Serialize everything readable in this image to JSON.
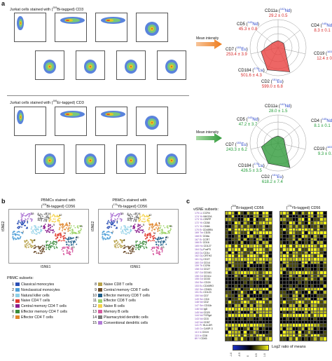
{
  "panel_a": {
    "letter": "a",
    "top_title_pre": "Jurkat cells stained with (",
    "top_title_iso": "209",
    "top_title_post": "Bi-tagged) CD3",
    "bottom_title_pre": "Jurkat cells stained with (",
    "bottom_title_iso": "166",
    "bottom_title_post": "Er-tagged) CD3",
    "mean_intensity_label": "Mean intensity",
    "radar_top": [
      {
        "marker": "CD11a",
        "mass": "142",
        "el": "Nd",
        "value": "29.2 ± 0.5"
      },
      {
        "marker": "CD4",
        "mass": "145",
        "el": "Nd",
        "value": "8.3 ± 0.1"
      },
      {
        "marker": "CD19",
        "mass": "163",
        "el": "Dy",
        "value": "12.4 ± 0.2"
      },
      {
        "marker": "CD2",
        "mass": "151",
        "el": "Eu",
        "value": "599.0 ± 6.8"
      },
      {
        "marker": "CD184",
        "mass": "175",
        "el": "Lu",
        "value": "501.6 ± 4.3"
      },
      {
        "marker": "CD7",
        "mass": "153",
        "el": "Eu",
        "value": "253.4 ± 3.9"
      },
      {
        "marker": "CD5",
        "mass": "143",
        "el": "Nd",
        "value": "45.3 ± 0.8"
      }
    ],
    "radar_bottom": [
      {
        "marker": "CD11a",
        "mass": "142",
        "el": "Nd",
        "value": "28.0 ± 1.5"
      },
      {
        "marker": "CD4",
        "mass": "145",
        "el": "Nd",
        "value": "8.1 ± 0.1"
      },
      {
        "marker": "CD19",
        "mass": "163",
        "el": "Dy",
        "value": "9.3 ± 0.2"
      },
      {
        "marker": "CD2",
        "mass": "151",
        "el": "Eu",
        "value": "618.2 ± 7.4"
      },
      {
        "marker": "CD184",
        "mass": "175",
        "el": "Lu",
        "value": "426.5 ± 3.5"
      },
      {
        "marker": "CD7",
        "mass": "153",
        "el": "Eu",
        "value": "243.3 ± 6.2"
      },
      {
        "marker": "CD5",
        "mass": "143",
        "el": "Nd",
        "value": "47.2 ± 3.7"
      }
    ]
  },
  "panel_b": {
    "letter": "b",
    "left_title_1": "PBMCs stained with",
    "left_title_2_pre": "(",
    "left_title_2_iso": "209",
    "left_title_2_post": "Bi-tagged) CD56",
    "right_title_1": "PBMCs stained with",
    "right_title_2_pre": "(",
    "right_title_2_iso": "176",
    "right_title_2_post": "Yb-tagged) CD56",
    "xlabel": "tSNE1",
    "ylabel": "tSNE2",
    "legend_title": "PBMC subsets:",
    "legend": [
      {
        "n": "1",
        "label": "Classical monocytes",
        "color": "#2b4fb5"
      },
      {
        "n": "2",
        "label": "Nonclassical monocytes",
        "color": "#4f9fd8"
      },
      {
        "n": "3",
        "label": "Natural killer cells",
        "color": "#8fd0e6"
      },
      {
        "n": "4",
        "label": "Naive CD4 T cells",
        "color": "#e23b2e"
      },
      {
        "n": "5",
        "label": "Central memory CD4 T cells",
        "color": "#8b1e8e"
      },
      {
        "n": "6",
        "label": "Effector memory CD4 T cells",
        "color": "#3a8c3a"
      },
      {
        "n": "7",
        "label": "Effector CD4 T cells",
        "color": "#e0862c"
      },
      {
        "n": "8",
        "label": "Naive CD8 T cells",
        "color": "#b8a24a"
      },
      {
        "n": "9",
        "label": "Central memory CD8 T cells",
        "color": "#6b4b2a"
      },
      {
        "n": "10",
        "label": "Effector memory CD8 T cells",
        "color": "#1f5e8a"
      },
      {
        "n": "11",
        "label": "Effector CD8 T cells",
        "color": "#9fd36a"
      },
      {
        "n": "12",
        "label": "Naive B cells",
        "color": "#f4d24a"
      },
      {
        "n": "13",
        "label": "Memory B cells",
        "color": "#d65aa0"
      },
      {
        "n": "14",
        "label": "Plasmacytoid dendritic cells",
        "color": "#7a7a7a"
      },
      {
        "n": "15",
        "label": "Conventional dendritic cells",
        "color": "#b07ad6"
      }
    ]
  },
  "panel_c": {
    "letter": "c",
    "visne_label": "viSNE subsets:",
    "left_title_pre": "(",
    "left_title_iso": "209",
    "left_title_post": "Bi-tagged) CD56",
    "right_title_pre": "(",
    "right_title_iso": "176",
    "right_title_post": "Yb-tagged) CD56",
    "legend_label": "Log2 ratio of means",
    "markers": [
      {
        "mass": "175",
        "el": "Lu",
        "name": "CCR4"
      },
      {
        "mass": "174",
        "el": "Yb",
        "name": "NKG2A"
      },
      {
        "mass": "173",
        "el": "Yb",
        "name": "CRIPP"
      },
      {
        "mass": "172",
        "el": "Yb",
        "name": "CD38"
      },
      {
        "mass": "171",
        "el": "Yb",
        "name": "CD66"
      },
      {
        "mass": "170",
        "el": "Er",
        "name": "CD45RA"
      },
      {
        "mass": "169",
        "el": "Tm",
        "name": "CD25"
      },
      {
        "mass": "168",
        "el": "Er",
        "name": "CD8a"
      },
      {
        "mass": "167",
        "el": "Er",
        "name": "CCR7"
      },
      {
        "mass": "166",
        "el": "Er",
        "name": "CD16"
      },
      {
        "mass": "165",
        "el": "Ho",
        "name": "CD127"
      },
      {
        "mass": "164",
        "el": "Dy",
        "name": "FoxP3"
      },
      {
        "mass": "163",
        "el": "Dy",
        "name": "CD1c"
      },
      {
        "mass": "162",
        "el": "Dy",
        "name": "CRTH2"
      },
      {
        "mass": "161",
        "el": "Dy",
        "name": "CD27"
      },
      {
        "mass": "160",
        "el": "Gd",
        "name": "CD14"
      },
      {
        "mass": "159",
        "el": "Tb",
        "name": "CCR6"
      },
      {
        "mass": "158",
        "el": "Gd",
        "name": "CD27"
      },
      {
        "mass": "157",
        "el": "Gd",
        "name": "CD161"
      },
      {
        "mass": "156",
        "el": "Gd",
        "name": "CD11c"
      },
      {
        "mass": "155",
        "el": "Gd",
        "name": "CD33"
      },
      {
        "mass": "154",
        "el": "Sm",
        "name": "CD24"
      },
      {
        "mass": "153",
        "el": "Eu",
        "name": "CD45RO"
      },
      {
        "mass": "152",
        "el": "Sm",
        "name": "CD62L"
      },
      {
        "mass": "151",
        "el": "Eu",
        "name": "CD123"
      },
      {
        "mass": "150",
        "el": "Nd",
        "name": "CD7"
      },
      {
        "mass": "149",
        "el": "Sm",
        "name": "CD4"
      },
      {
        "mass": "148",
        "el": "Nd",
        "name": "CD2"
      },
      {
        "mass": "147",
        "el": "Sm",
        "name": "CD11b"
      },
      {
        "mass": "146",
        "el": "Nd",
        "name": "IgD"
      },
      {
        "mass": "145",
        "el": "Nd",
        "name": "CD20"
      },
      {
        "mass": "144",
        "el": "Nd",
        "name": "TCRgd"
      },
      {
        "mass": "143",
        "el": "Nd",
        "name": "CD3"
      },
      {
        "mass": "142",
        "el": "Nd",
        "name": "CD57"
      },
      {
        "mass": "141",
        "el": "Pr",
        "name": "HLA-DR"
      },
      {
        "mass": "140",
        "el": "Ce",
        "name": "CASP-3"
      },
      {
        "mass": "113",
        "el": "In",
        "name": "CD19"
      },
      {
        "mass": "115",
        "el": "In",
        "name": "CD8"
      },
      {
        "mass": "89",
        "el": "Y",
        "name": "CD45"
      }
    ],
    "scale_ticks": [
      "-1.0",
      "-0.5",
      "0",
      "0.5",
      "1.0"
    ]
  }
}
